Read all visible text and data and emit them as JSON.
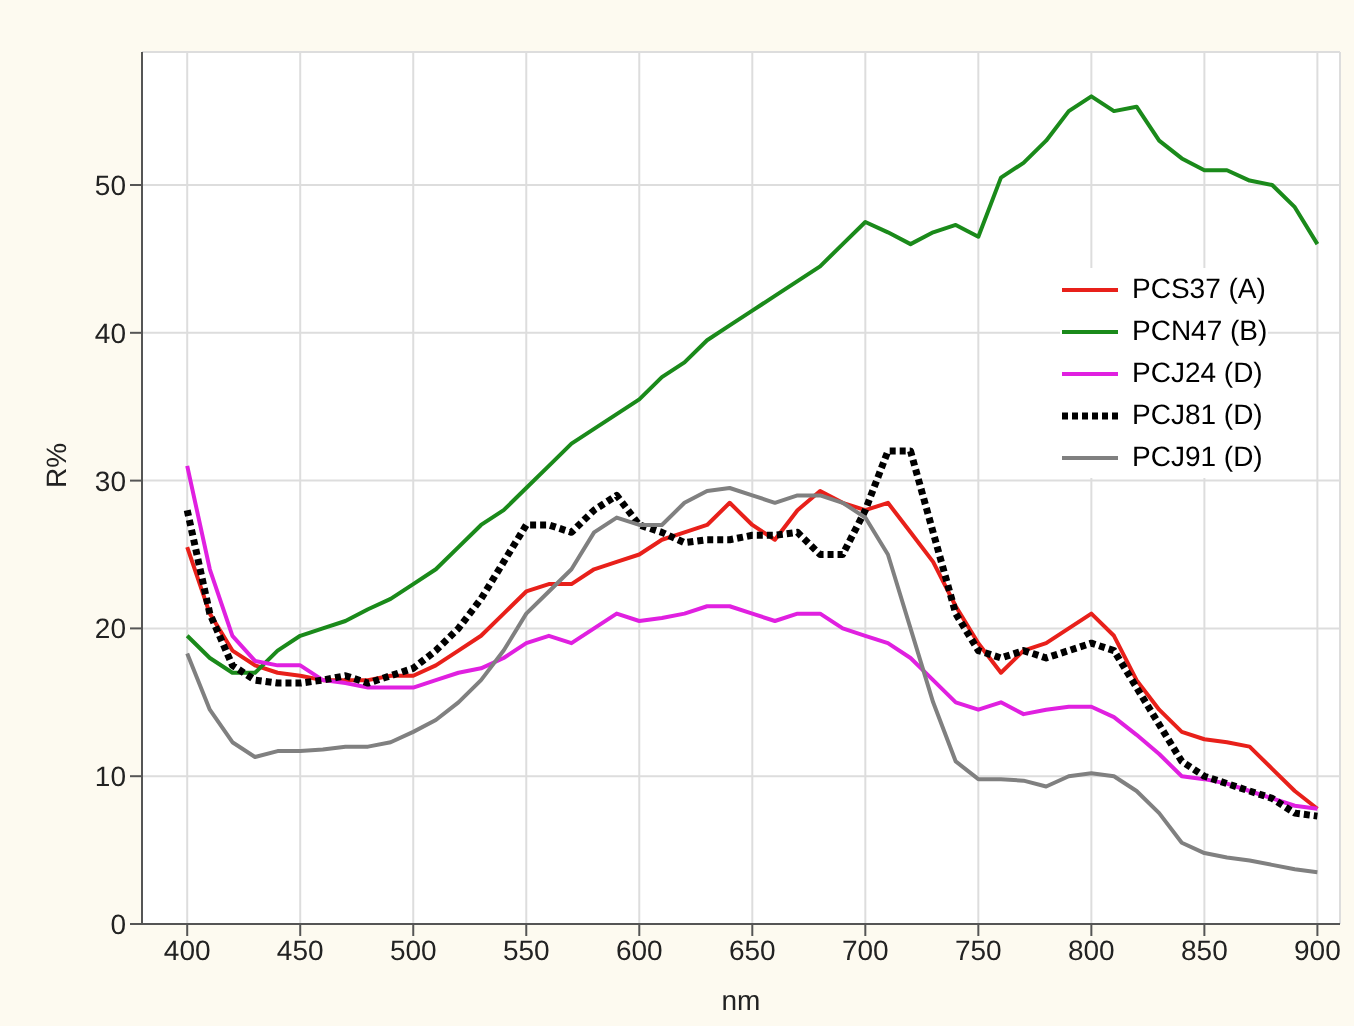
{
  "chart_data": {
    "type": "line",
    "xlabel": "nm",
    "ylabel": "R%",
    "x": [
      400,
      410,
      420,
      430,
      440,
      450,
      460,
      470,
      480,
      490,
      500,
      510,
      520,
      530,
      540,
      550,
      560,
      570,
      580,
      590,
      600,
      610,
      620,
      630,
      640,
      650,
      660,
      670,
      680,
      690,
      700,
      710,
      720,
      730,
      740,
      750,
      760,
      770,
      780,
      790,
      800,
      810,
      820,
      830,
      840,
      850,
      860,
      870,
      880,
      890,
      900
    ],
    "series": [
      {
        "name": "PCS37 (A)",
        "color": "#e8201a",
        "line_style": "solid",
        "values": [
          25.5,
          21,
          18.5,
          17.5,
          17,
          16.8,
          16.5,
          16.5,
          16.5,
          16.8,
          16.8,
          17.5,
          18.5,
          19.5,
          21,
          22.5,
          23,
          23,
          24,
          24.5,
          25,
          26,
          26.5,
          27,
          28.5,
          27,
          26,
          28,
          29.3,
          28.5,
          28,
          28.5,
          26.5,
          24.5,
          21.5,
          19,
          17,
          18.5,
          19,
          20,
          21,
          19.5,
          16.5,
          14.5,
          13,
          12.5,
          12.3,
          12,
          10.5,
          9,
          7.8
        ]
      },
      {
        "name": "PCN47 (B)",
        "color": "#1a8a1a",
        "line_style": "solid",
        "values": [
          19.5,
          18,
          17,
          17,
          18.5,
          19.5,
          20,
          20.5,
          21.3,
          22,
          23,
          24,
          25.5,
          27,
          28,
          29.5,
          31,
          32.5,
          33.5,
          34.5,
          35.5,
          37,
          38,
          39.5,
          40.5,
          41.5,
          42.5,
          43.5,
          44.5,
          46,
          47.5,
          46.8,
          46,
          46.8,
          47.3,
          46.5,
          50.5,
          51.5,
          53,
          55,
          56,
          55,
          55.3,
          53,
          51.8,
          51,
          51,
          50.3,
          50,
          48.5,
          46
        ]
      },
      {
        "name": "PCJ24 (D)",
        "color": "#e020e0",
        "line_style": "solid",
        "values": [
          31,
          24,
          19.5,
          17.8,
          17.5,
          17.5,
          16.5,
          16.3,
          16,
          16,
          16,
          16.5,
          17,
          17.3,
          18,
          19,
          19.5,
          19,
          20,
          21,
          20.5,
          20.7,
          21,
          21.5,
          21.5,
          21,
          20.5,
          21,
          21,
          20,
          19.5,
          19,
          18,
          16.5,
          15,
          14.5,
          15,
          14.2,
          14.5,
          14.7,
          14.7,
          14,
          12.8,
          11.5,
          10,
          9.8,
          9.5,
          9,
          8.5,
          8,
          7.8
        ]
      },
      {
        "name": "PCJ81 (D)",
        "color": "#000000",
        "line_style": "dotted",
        "values": [
          28,
          21,
          17.5,
          16.5,
          16.3,
          16.3,
          16.5,
          16.8,
          16.3,
          16.8,
          17.3,
          18.5,
          20,
          22,
          24.5,
          27,
          27,
          26.5,
          28,
          29,
          27,
          26.5,
          25.8,
          26,
          26,
          26.3,
          26.3,
          26.5,
          25,
          25,
          28,
          32,
          32,
          26.5,
          21,
          18.5,
          18,
          18.5,
          18,
          18.5,
          19,
          18.5,
          16,
          13.5,
          11,
          10,
          9.5,
          9,
          8.5,
          7.5,
          7.3
        ]
      },
      {
        "name": "PCJ91 (D)",
        "color": "#808080",
        "line_style": "solid",
        "values": [
          18.3,
          14.5,
          12.3,
          11.3,
          11.7,
          11.7,
          11.8,
          12,
          12,
          12.3,
          13,
          13.8,
          15,
          16.5,
          18.5,
          21,
          22.5,
          24,
          26.5,
          27.5,
          27,
          27,
          28.5,
          29.3,
          29.5,
          29,
          28.5,
          29,
          29,
          28.5,
          27.5,
          25,
          20,
          15,
          11,
          9.8,
          9.8,
          9.7,
          9.3,
          10,
          10.2,
          10,
          9,
          7.5,
          5.5,
          4.8,
          4.5,
          4.3,
          4,
          3.7,
          3.5
        ]
      }
    ],
    "xlim": [
      380,
      910
    ],
    "ylim": [
      0,
      59
    ],
    "xticks": [
      400,
      450,
      500,
      550,
      600,
      650,
      700,
      750,
      800,
      850,
      900
    ],
    "yticks": [
      0,
      10,
      20,
      30,
      40,
      50
    ],
    "grid": true,
    "legend": "right",
    "marker": "none"
  }
}
